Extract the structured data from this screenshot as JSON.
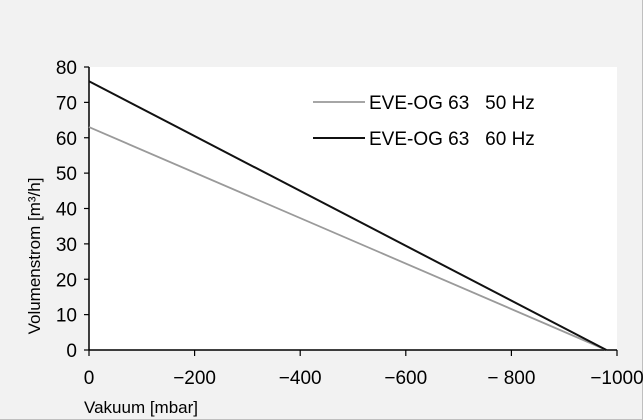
{
  "chart_data": {
    "type": "line",
    "title": "",
    "xlabel": "Vakuum [mbar]",
    "ylabel": "Volumenstrom [m³/h]",
    "xlim": [
      0,
      -1000
    ],
    "ylim": [
      0,
      80
    ],
    "x_ticks": [
      0,
      -200,
      -400,
      -600,
      -800,
      -1000
    ],
    "x_tick_labels": [
      "0",
      "−200",
      "−400",
      "−600",
      "− 800",
      "−1000"
    ],
    "y_ticks": [
      0,
      10,
      20,
      30,
      40,
      50,
      60,
      70,
      80
    ],
    "y_tick_labels": [
      "0",
      "10",
      "20",
      "30",
      "40",
      "50",
      "60",
      "70",
      "80"
    ],
    "grid": false,
    "legend_position": "top-right",
    "series": [
      {
        "name": "EVE-OG 63   50 Hz",
        "color": "#9a9a9a",
        "x": [
          0,
          -980
        ],
        "y": [
          63,
          0
        ]
      },
      {
        "name": "EVE-OG 63   60 Hz",
        "color": "#111111",
        "x": [
          0,
          -980
        ],
        "y": [
          76,
          0
        ]
      }
    ]
  }
}
